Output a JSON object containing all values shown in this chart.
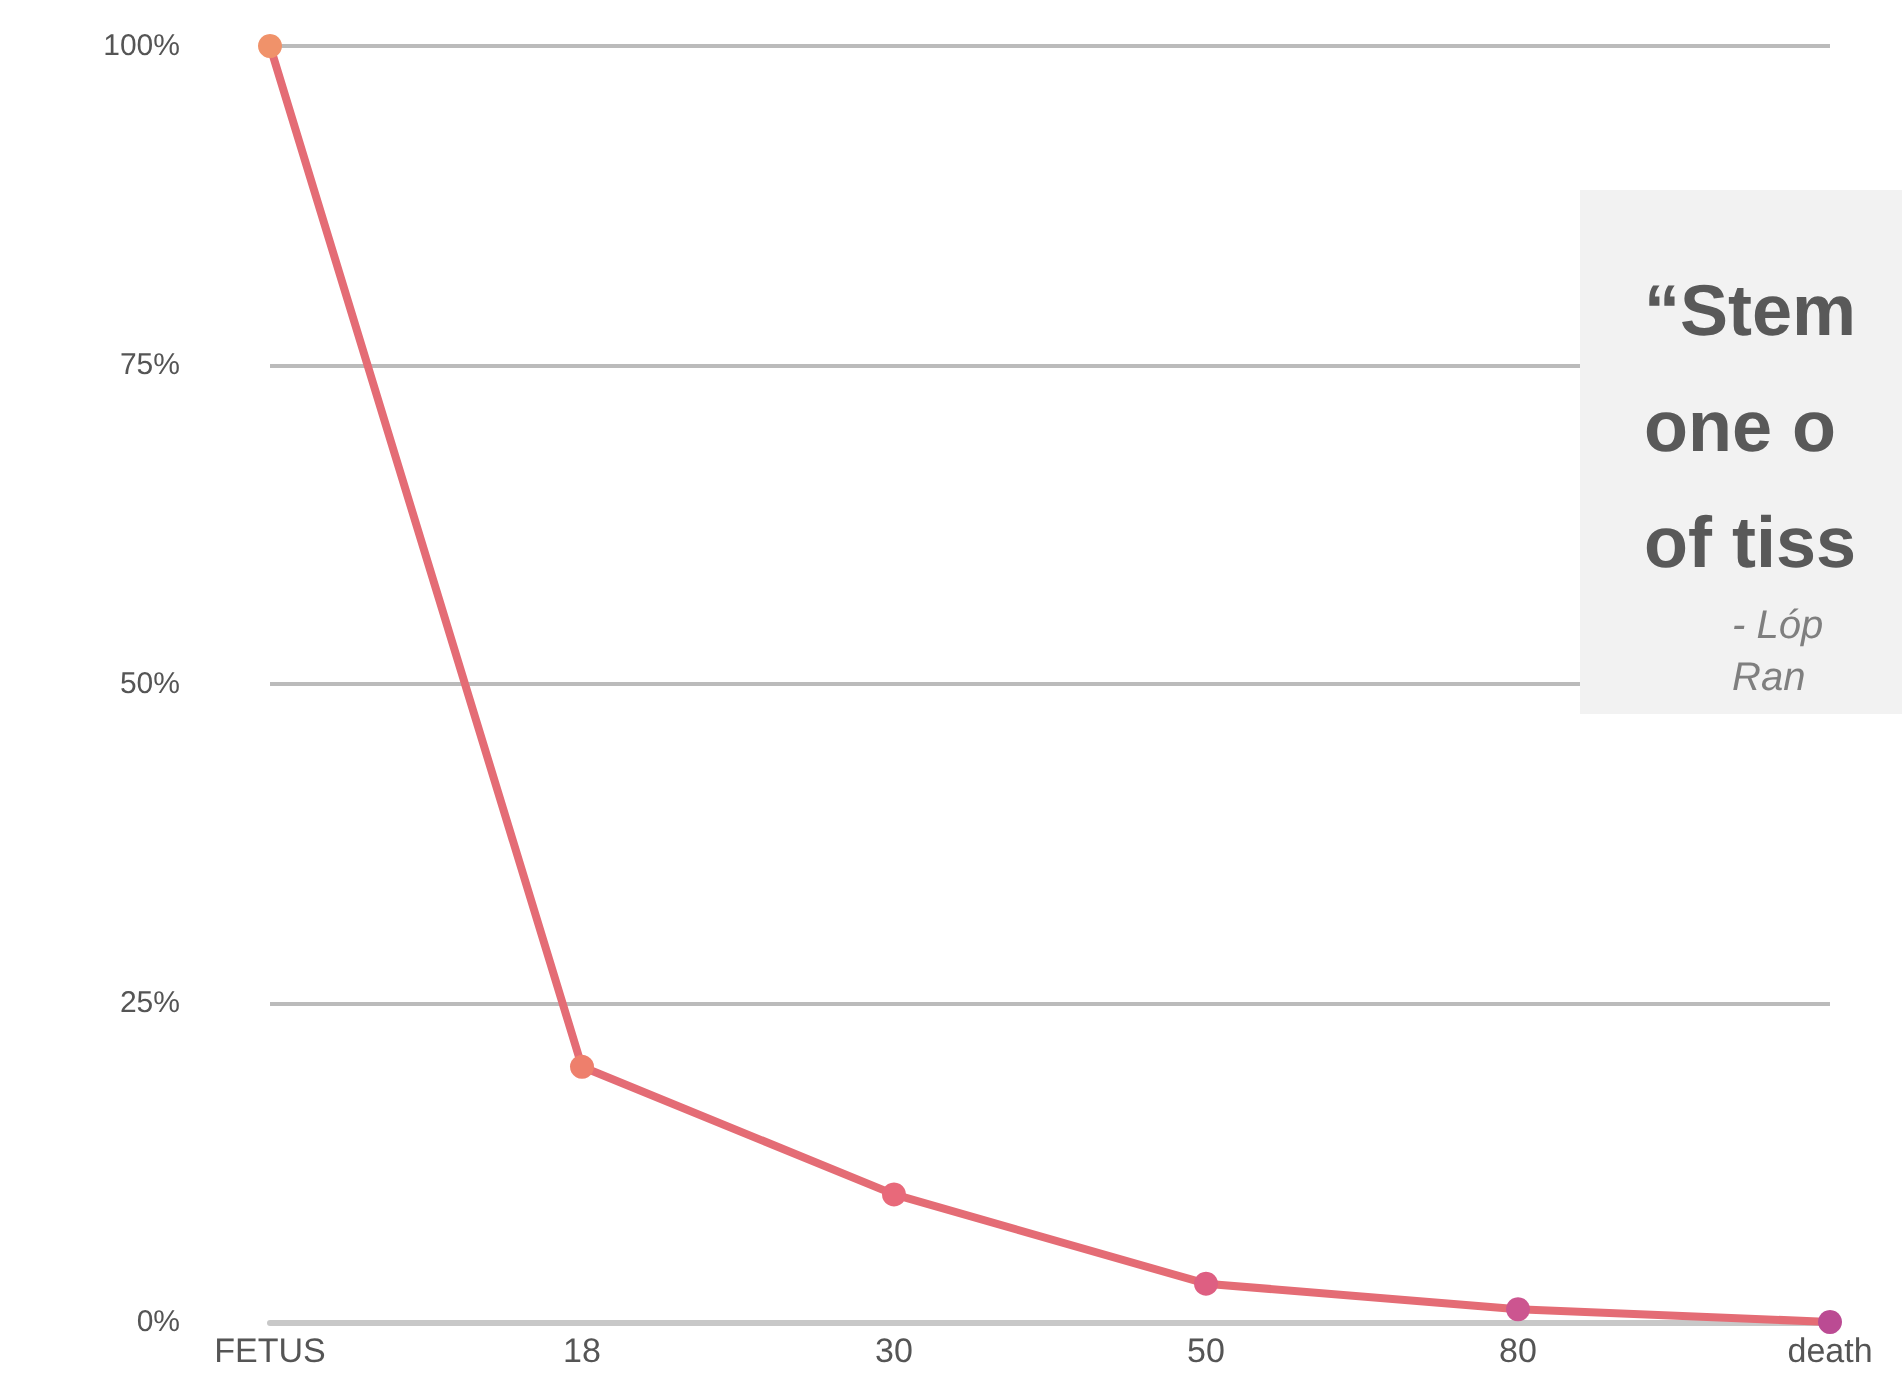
{
  "chart_data": {
    "type": "line",
    "categories": [
      "FETUS",
      "18",
      "30",
      "50",
      "80",
      "death"
    ],
    "values": [
      100,
      20,
      10,
      3,
      1,
      0
    ],
    "color": "#e46c75",
    "colors": [
      "#f0926a",
      "#ee7f6c",
      "#e8697a",
      "#de5f82",
      "#cc5590",
      "#bb4b93"
    ],
    "ylim": [
      0,
      100
    ],
    "yticks": [
      {
        "value": 0,
        "label": "0%"
      },
      {
        "value": 25,
        "label": "25%"
      },
      {
        "value": 50,
        "label": "50%"
      },
      {
        "value": 75,
        "label": "75%"
      },
      {
        "value": 100,
        "label": "100%"
      }
    ],
    "grid": "y",
    "marker": "circle",
    "line_style": "solid",
    "annotations": [
      "“Stem\none o\nof tiss",
      "- Lóp\nRan"
    ]
  }
}
